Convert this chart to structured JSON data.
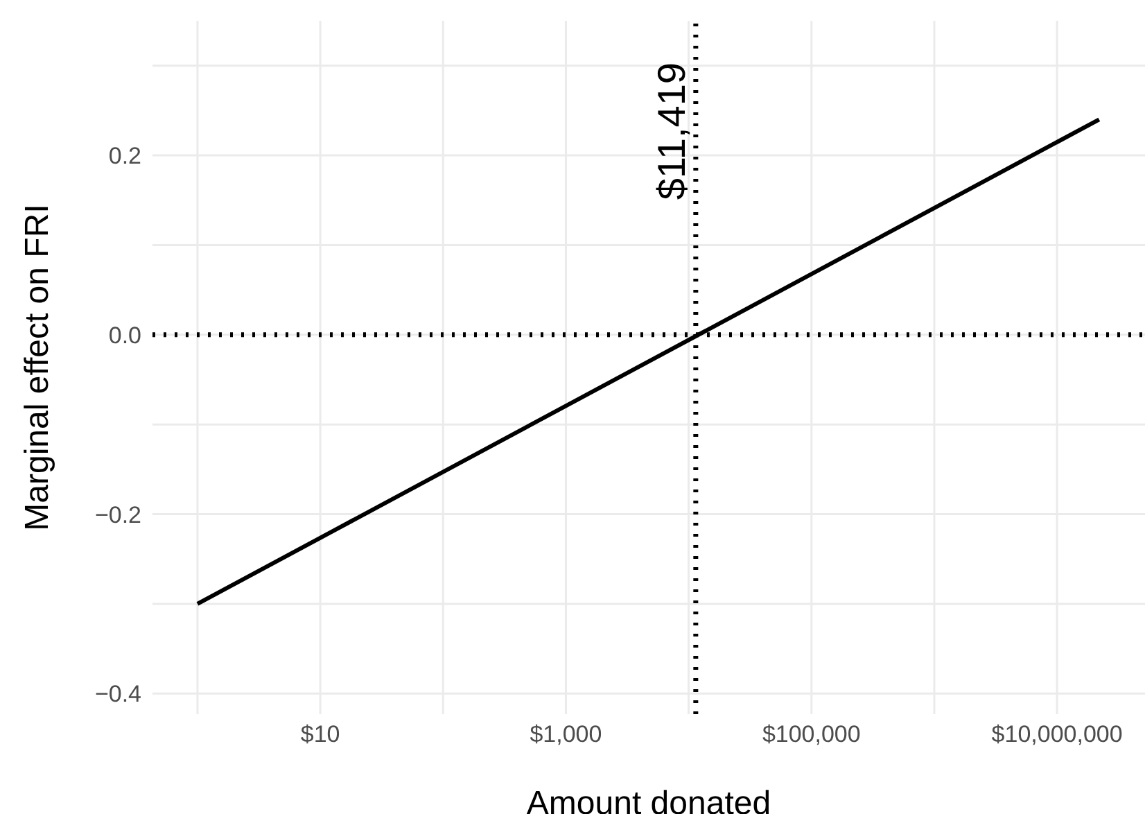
{
  "chart_data": {
    "type": "line",
    "xlabel": "Amount donated",
    "ylabel": "Marginal effect on FRI",
    "log": "x",
    "x": [
      1,
      22000000
    ],
    "series": [
      {
        "color": "#000000",
        "values": [
          -0.3,
          0.24
        ]
      }
    ],
    "xlim": [
      0.43,
      52000000
    ],
    "xticks": [
      {
        "value": 1,
        "label": null
      },
      {
        "value": 10,
        "label": "$10"
      },
      {
        "value": 100,
        "label": null
      },
      {
        "value": 1000,
        "label": "$1,000"
      },
      {
        "value": 10000,
        "label": null
      },
      {
        "value": 100000,
        "label": "$100,000"
      },
      {
        "value": 1000000,
        "label": null
      },
      {
        "value": 10000000,
        "label": "$10,000,000"
      }
    ],
    "ylim": [
      -0.423,
      0.35
    ],
    "yticks": [
      {
        "value": -0.4,
        "label": "−0.4"
      },
      {
        "value": -0.3,
        "label": null
      },
      {
        "value": -0.2,
        "label": "−0.2"
      },
      {
        "value": -0.1,
        "label": null
      },
      {
        "value": 0,
        "label": "0.0"
      },
      {
        "value": 0.1,
        "label": null
      },
      {
        "value": 0.2,
        "label": "0.2"
      },
      {
        "value": 0.3,
        "label": null
      }
    ],
    "ref_lines": [
      {
        "axis": "x",
        "value": 11419,
        "label": "$11,419",
        "line_style": "dotted",
        "color": "#000000"
      },
      {
        "axis": "y",
        "value": 0,
        "line_style": "dotted",
        "color": "#000000"
      }
    ],
    "grid": true
  }
}
